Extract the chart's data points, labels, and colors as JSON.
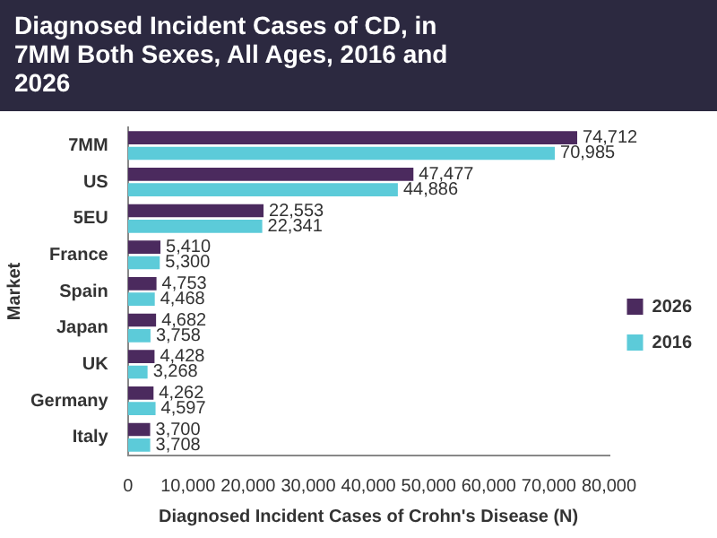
{
  "chart_data": {
    "type": "bar",
    "orientation": "horizontal",
    "title": "Diagnosed Incident Cases of CD, in 7MM Both Sexes, All Ages, 2016 and 2026",
    "xlabel": "Diagnosed Incident Cases of Crohn's Disease (N)",
    "ylabel": "Market",
    "categories": [
      "7MM",
      "US",
      "5EU",
      "France",
      "Spain",
      "Japan",
      "UK",
      "Germany",
      "Italy"
    ],
    "series": [
      {
        "name": "2026",
        "color": "#4b2a5e",
        "values": [
          74712,
          47477,
          22553,
          5410,
          4753,
          4682,
          4428,
          4262,
          3700
        ],
        "value_labels": [
          "74,712",
          "47,477",
          "22,553",
          "5,410",
          "4,753",
          "4,682",
          "4,428",
          "4,262",
          "3,700"
        ]
      },
      {
        "name": "2016",
        "color": "#5ccbd9",
        "values": [
          70985,
          44886,
          22341,
          5300,
          4468,
          3758,
          3268,
          4597,
          3708
        ],
        "value_labels": [
          "70,985",
          "44,886",
          "22,341",
          "5,300",
          "4,468",
          "3,758",
          "3,268",
          "4,597",
          "3,708"
        ]
      }
    ],
    "xlim": [
      0,
      80000
    ],
    "xticks": [
      0,
      {
        "value": 10000,
        "label": "10,000"
      },
      {
        "value": 20000,
        "label": "20,000"
      },
      {
        "value": 30000,
        "label": "30,000"
      },
      {
        "value": 40000,
        "label": "40,000"
      },
      {
        "value": 50000,
        "label": "50,000"
      },
      {
        "value": 60000,
        "label": "60,000"
      },
      {
        "value": 70000,
        "label": "70,000"
      },
      {
        "value": 80000,
        "label": "80,000"
      }
    ],
    "grid": false,
    "legend": "right"
  }
}
